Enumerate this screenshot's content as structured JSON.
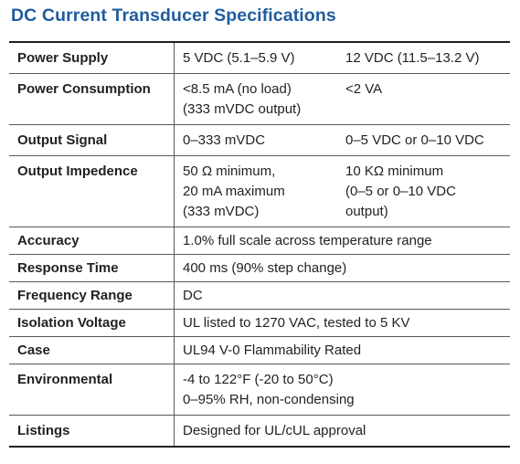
{
  "title": "DC Current Transducer Specifications",
  "rows": [
    {
      "label": "Power Supply",
      "value1": "5 VDC (5.1–5.9 V)",
      "value2": "12 VDC (11.5–13.2 V)"
    },
    {
      "label": "Power Consumption",
      "value1": "<8.5 mA (no load)\n(333 mVDC output)",
      "value2": "<2 VA"
    },
    {
      "label": "Output Signal",
      "value1": "0–333 mVDC",
      "value2": "0–5 VDC or 0–10 VDC"
    },
    {
      "label": "Output Impedence",
      "value1": "50 Ω minimum,\n20 mA maximum\n(333 mVDC)",
      "value2": "10 KΩ minimum\n(0–5 or 0–10 VDC\noutput)"
    },
    {
      "label": "Accuracy",
      "value": "1.0% full scale across temperature range"
    },
    {
      "label": "Response Time",
      "value": "400 ms (90% step change)"
    },
    {
      "label": "Frequency Range",
      "value": "DC"
    },
    {
      "label": "Isolation Voltage",
      "value": "UL listed to 1270 VAC, tested to 5 KV"
    },
    {
      "label": "Case",
      "value": "UL94 V-0 Flammability Rated"
    },
    {
      "label": "Environmental",
      "value": "-4 to 122°F (-20 to 50°C)\n0–95% RH, non-condensing"
    },
    {
      "label": "Listings",
      "value": "Designed for UL/cUL approval"
    }
  ]
}
